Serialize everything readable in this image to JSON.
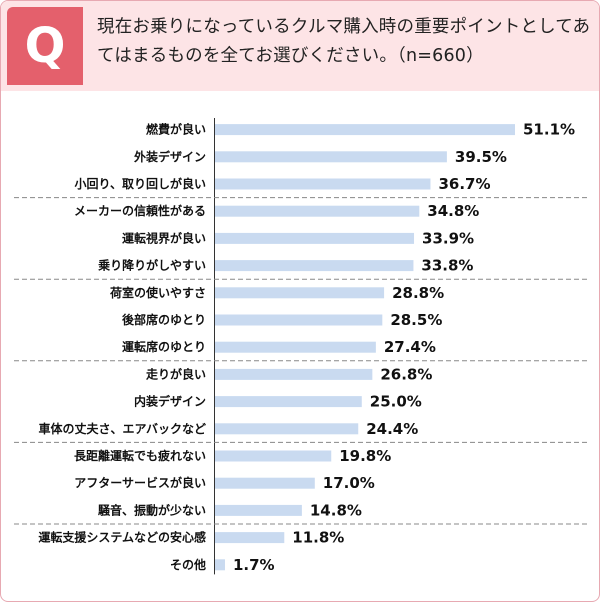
{
  "header": {
    "badge": "Q",
    "question": "現在お乗りになっているクルマ購入時の重要ポイントとしてあてはまるものを全てお選びください。（n=660）"
  },
  "colors": {
    "badge": "#e4606c",
    "header_bg": "#fde4e6",
    "bar": "#c9daf0",
    "border": "#e7a9b2"
  },
  "chart_data": {
    "type": "bar",
    "orientation": "horizontal",
    "unit": "%",
    "categories": [
      "燃費が良い",
      "外装デザイン",
      "小回り、取り回しが良い",
      "メーカーの信頼性がある",
      "運転視界が良い",
      "乗り降りがしやすい",
      "荷室の使いやすさ",
      "後部席のゆとり",
      "運転席のゆとり",
      "走りが良い",
      "内装デザイン",
      "車体の丈夫さ、エアバックなど",
      "長距離運転でも疲れない",
      "アフターサービスが良い",
      "騒音、振動が少ない",
      "運転支援システムなどの安心感",
      "その他"
    ],
    "values": [
      51.1,
      39.5,
      36.7,
      34.8,
      33.9,
      33.8,
      28.8,
      28.5,
      27.4,
      26.8,
      25.0,
      24.4,
      19.8,
      17.0,
      14.8,
      11.8,
      1.7
    ],
    "value_labels": [
      "51.1%",
      "39.5%",
      "36.7%",
      "34.8%",
      "33.9%",
      "33.8%",
      "28.8%",
      "28.5%",
      "27.4%",
      "26.8%",
      "25.0%",
      "24.4%",
      "19.8%",
      "17.0%",
      "14.8%",
      "11.8%",
      "1.7%"
    ],
    "group_separators_after": [
      2,
      5,
      8,
      11,
      14
    ],
    "xlim": [
      0,
      51.1
    ]
  }
}
